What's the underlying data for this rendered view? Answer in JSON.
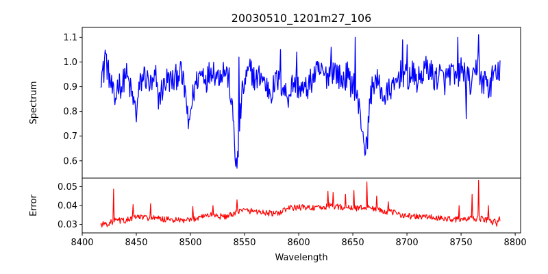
{
  "chart_data": [
    {
      "type": "line",
      "title": "20030510_1201m27_106",
      "xlabel": "",
      "ylabel": "Spectrum",
      "xlim": [
        8400,
        8805
      ],
      "ylim": [
        0.53,
        1.14
      ],
      "yticks": [
        0.6,
        0.7,
        0.8,
        0.9,
        1.0,
        1.1
      ],
      "ytick_labels": [
        "0.6",
        "0.7",
        "0.8",
        "0.9",
        "1.0",
        "1.1"
      ],
      "xticks": [
        8400,
        8450,
        8500,
        8550,
        8600,
        8650,
        8700,
        8750,
        8800
      ],
      "series": [
        {
          "name": "Spectrum",
          "color": "#0000ff",
          "x_range": [
            8417,
            8786
          ],
          "base": [
            [
              8417,
              0.95
            ],
            [
              8420,
              0.96
            ],
            [
              8421,
              1.05
            ],
            [
              8423,
              0.98
            ],
            [
              8425,
              0.94
            ],
            [
              8428,
              0.88
            ],
            [
              8430,
              0.83
            ],
            [
              8433,
              0.92
            ],
            [
              8437,
              0.9
            ],
            [
              8440,
              0.96
            ],
            [
              8445,
              0.88
            ],
            [
              8448,
              0.83
            ],
            [
              8450,
              0.79
            ],
            [
              8453,
              0.9
            ],
            [
              8457,
              0.95
            ],
            [
              8462,
              0.91
            ],
            [
              8465,
              0.9
            ],
            [
              8468,
              0.94
            ],
            [
              8470,
              0.85
            ],
            [
              8473,
              0.88
            ],
            [
              8478,
              0.93
            ],
            [
              8485,
              0.92
            ],
            [
              8490,
              0.97
            ],
            [
              8493,
              0.92
            ],
            [
              8496,
              0.86
            ],
            [
              8498,
              0.73
            ],
            [
              8500,
              0.8
            ],
            [
              8503,
              0.88
            ],
            [
              8507,
              0.94
            ],
            [
              8512,
              0.96
            ],
            [
              8515,
              0.93
            ],
            [
              8520,
              0.98
            ],
            [
              8525,
              0.94
            ],
            [
              8530,
              0.97
            ],
            [
              8533,
              0.96
            ],
            [
              8536,
              0.92
            ],
            [
              8538,
              0.82
            ],
            [
              8540,
              0.75
            ],
            [
              8541,
              0.65
            ],
            [
              8542,
              0.6
            ],
            [
              8543,
              0.57
            ],
            [
              8544,
              0.62
            ],
            [
              8546,
              0.78
            ],
            [
              8548,
              0.88
            ],
            [
              8552,
              0.94
            ],
            [
              8556,
              0.97
            ],
            [
              8560,
              0.92
            ],
            [
              8565,
              0.95
            ],
            [
              8570,
              0.9
            ],
            [
              8575,
              0.88
            ],
            [
              8580,
              0.93
            ],
            [
              8585,
              0.9
            ],
            [
              8590,
              0.86
            ],
            [
              8595,
              0.92
            ],
            [
              8600,
              0.9
            ],
            [
              8605,
              0.88
            ],
            [
              8610,
              0.91
            ],
            [
              8615,
              0.95
            ],
            [
              8620,
              0.96
            ],
            [
              8625,
              0.94
            ],
            [
              8630,
              0.97
            ],
            [
              8635,
              0.96
            ],
            [
              8640,
              0.92
            ],
            [
              8645,
              0.95
            ],
            [
              8648,
              0.9
            ],
            [
              8650,
              0.93
            ],
            [
              8653,
              0.87
            ],
            [
              8655,
              0.83
            ],
            [
              8657,
              0.78
            ],
            [
              8660,
              0.7
            ],
            [
              8662,
              0.63
            ],
            [
              8664,
              0.72
            ],
            [
              8666,
              0.86
            ],
            [
              8670,
              0.93
            ],
            [
              8675,
              0.9
            ],
            [
              8680,
              0.85
            ],
            [
              8685,
              0.9
            ],
            [
              8688,
              0.88
            ],
            [
              8690,
              0.92
            ],
            [
              8695,
              0.96
            ],
            [
              8700,
              0.93
            ],
            [
              8705,
              0.95
            ],
            [
              8710,
              0.92
            ],
            [
              8715,
              0.96
            ],
            [
              8720,
              0.98
            ],
            [
              8725,
              0.93
            ],
            [
              8730,
              0.95
            ],
            [
              8735,
              0.92
            ],
            [
              8740,
              0.96
            ],
            [
              8745,
              0.93
            ],
            [
              8750,
              0.97
            ],
            [
              8755,
              0.94
            ],
            [
              8760,
              0.9
            ],
            [
              8763,
              0.95
            ],
            [
              8766,
              1.02
            ],
            [
              8768,
              0.93
            ],
            [
              8770,
              0.9
            ],
            [
              8773,
              0.94
            ],
            [
              8776,
              0.88
            ],
            [
              8780,
              0.96
            ],
            [
              8783,
              0.93
            ],
            [
              8786,
              0.98
            ]
          ],
          "noise_amplitude": 0.055,
          "notable_points": [
            [
              8498,
              0.73
            ],
            [
              8543,
              0.57
            ],
            [
              8662,
              0.63
            ],
            [
              8755,
              0.77
            ],
            [
              8766,
              1.11
            ],
            [
              8747,
              1.1
            ],
            [
              8696,
              1.09
            ],
            [
              8652,
              1.1
            ],
            [
              8598,
              1.04
            ],
            [
              8583,
              1.05
            ],
            [
              8545,
              1.02
            ],
            [
              8630,
              1.06
            ],
            [
              8700,
              1.07
            ]
          ]
        }
      ]
    },
    {
      "type": "line",
      "title": "",
      "xlabel": "Wavelength",
      "ylabel": "Error",
      "xlim": [
        8400,
        8805
      ],
      "ylim": [
        0.0255,
        0.0545
      ],
      "yticks": [
        0.03,
        0.04,
        0.05
      ],
      "ytick_labels": [
        "0.03",
        "0.04",
        "0.05"
      ],
      "xticks": [
        8400,
        8450,
        8500,
        8550,
        8600,
        8650,
        8700,
        8750,
        8800
      ],
      "xtick_labels": [
        "8400",
        "8450",
        "8500",
        "8550",
        "8600",
        "8650",
        "8700",
        "8750",
        "8800"
      ],
      "series": [
        {
          "name": "Error",
          "color": "#ff0000",
          "x_range": [
            8417,
            8786
          ],
          "base": [
            [
              8417,
              0.03
            ],
            [
              8425,
              0.0305
            ],
            [
              8430,
              0.032
            ],
            [
              8440,
              0.032
            ],
            [
              8450,
              0.034
            ],
            [
              8470,
              0.033
            ],
            [
              8490,
              0.032
            ],
            [
              8500,
              0.032
            ],
            [
              8510,
              0.0345
            ],
            [
              8520,
              0.035
            ],
            [
              8530,
              0.034
            ],
            [
              8540,
              0.035
            ],
            [
              8545,
              0.0375
            ],
            [
              8560,
              0.037
            ],
            [
              8570,
              0.036
            ],
            [
              8580,
              0.0355
            ],
            [
              8590,
              0.0385
            ],
            [
              8600,
              0.039
            ],
            [
              8610,
              0.039
            ],
            [
              8620,
              0.0385
            ],
            [
              8630,
              0.04
            ],
            [
              8640,
              0.039
            ],
            [
              8650,
              0.0385
            ],
            [
              8660,
              0.039
            ],
            [
              8670,
              0.0385
            ],
            [
              8680,
              0.037
            ],
            [
              8690,
              0.036
            ],
            [
              8700,
              0.0345
            ],
            [
              8710,
              0.034
            ],
            [
              8720,
              0.034
            ],
            [
              8730,
              0.033
            ],
            [
              8740,
              0.033
            ],
            [
              8750,
              0.0325
            ],
            [
              8760,
              0.033
            ],
            [
              8770,
              0.033
            ],
            [
              8780,
              0.031
            ],
            [
              8786,
              0.033
            ]
          ],
          "noise_amplitude": 0.0016,
          "spikes": [
            [
              8429,
              0.0487
            ],
            [
              8447,
              0.0405
            ],
            [
              8463,
              0.041
            ],
            [
              8502,
              0.0395
            ],
            [
              8521,
              0.04
            ],
            [
              8543,
              0.043
            ],
            [
              8627,
              0.0475
            ],
            [
              8632,
              0.047
            ],
            [
              8643,
              0.046
            ],
            [
              8651,
              0.048
            ],
            [
              8663,
              0.0525
            ],
            [
              8672,
              0.045
            ],
            [
              8683,
              0.042
            ],
            [
              8748,
              0.04
            ],
            [
              8760,
              0.046
            ],
            [
              8766,
              0.0533
            ],
            [
              8775,
              0.04
            ],
            [
              8783,
              0.029
            ]
          ]
        }
      ]
    }
  ]
}
